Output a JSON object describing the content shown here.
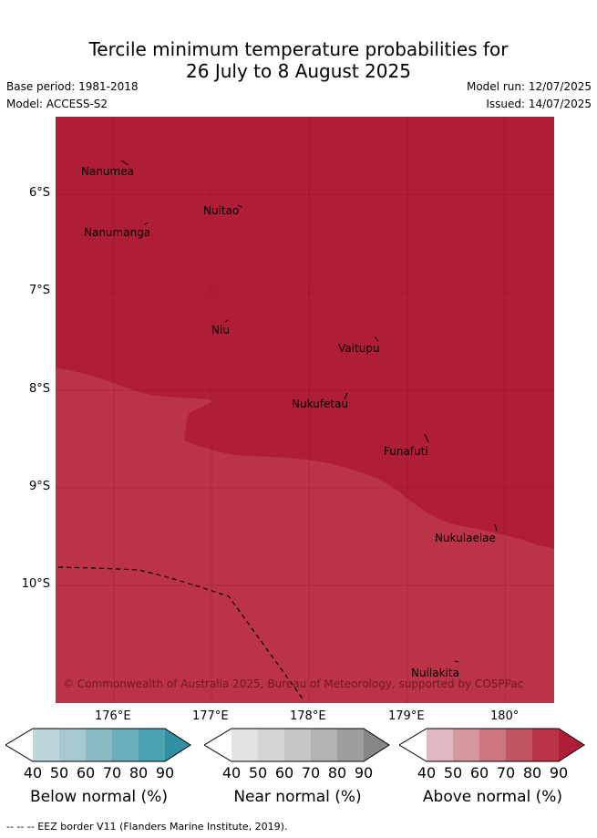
{
  "title_line1": "Tercile minimum temperature probabilities for",
  "title_line2": "26 July to 8 August 2025",
  "base_period": "Base period: 1981-2018",
  "model": "Model: ACCESS-S2",
  "model_run": "Model run: 12/07/2025",
  "issued": "Issued: 14/07/2025",
  "copyright": "© Commonwealth of Australia 2025, Bureau of Meteorology, supported by COSPPac",
  "footnote": "--  --  -- EEZ border V11 (Flanders Marine Institute, 2019).",
  "x_ticks": [
    "176°E",
    "177°E",
    "178°E",
    "179°E",
    "180°"
  ],
  "y_ticks": [
    "6°S",
    "7°S",
    "8°S",
    "9°S",
    "10°S"
  ],
  "places": [
    {
      "name": "Nanumea"
    },
    {
      "name": "Nuitao"
    },
    {
      "name": "Nanumanga"
    },
    {
      "name": "Niu"
    },
    {
      "name": "Vaitupu"
    },
    {
      "name": "Nukufetau"
    },
    {
      "name": "Funafuti"
    },
    {
      "name": "Nukulaelae"
    },
    {
      "name": "Nuilakita"
    }
  ],
  "colorbars": [
    {
      "label": "Below normal (%)",
      "ticks": [
        "40",
        "50",
        "60",
        "70",
        "80",
        "90"
      ],
      "colors": [
        "#ffffff",
        "#bdd6dc",
        "#a6cad0",
        "#89b9c4",
        "#6aaebd",
        "#4aa3b3",
        "#2f8fa3"
      ]
    },
    {
      "label": "Near normal (%)",
      "ticks": [
        "40",
        "50",
        "60",
        "70",
        "80",
        "90"
      ],
      "colors": [
        "#ffffff",
        "#e3e3e3",
        "#d6d6d6",
        "#c6c6c6",
        "#b3b3b3",
        "#9e9e9e",
        "#868686"
      ]
    },
    {
      "label": "Above normal (%)",
      "ticks": [
        "40",
        "50",
        "60",
        "70",
        "80",
        "90"
      ],
      "colors": [
        "#ffffff",
        "#e0b8bf",
        "#d7979f",
        "#cc7680",
        "#c25563",
        "#bb3348",
        "#ae1e38"
      ]
    }
  ],
  "colors": {
    "high_probability": "#af1d37",
    "medium_probability": "#bb3348"
  }
}
